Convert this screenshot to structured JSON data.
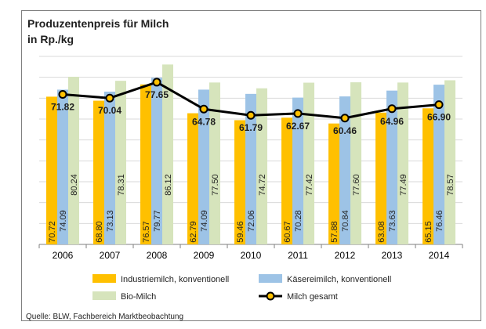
{
  "chart_data": {
    "type": "bar",
    "title": "Produzentenpreis für Milch",
    "subtitle": "in Rp./kg",
    "source": "Quelle: BLW, Fachbereich Marktbeobachtung",
    "categories": [
      "2006",
      "2007",
      "2008",
      "2009",
      "2010",
      "2011",
      "2012",
      "2013",
      "2014"
    ],
    "series": [
      {
        "name": "Industriemilch, konventionell",
        "type": "bar",
        "color": "#FFC000",
        "values": [
          70.72,
          68.8,
          76.57,
          62.79,
          59.46,
          60.67,
          57.88,
          63.08,
          65.15
        ],
        "labels": [
          "70.72",
          "68.80",
          "76.57",
          "62.79",
          "59.46",
          "60.67",
          "57.88",
          "63.08",
          "65.15"
        ]
      },
      {
        "name": "Käsereimilch, konventionell",
        "type": "bar",
        "color": "#9DC3E6",
        "values": [
          74.09,
          73.13,
          79.77,
          74.09,
          72.06,
          70.28,
          70.84,
          73.63,
          76.46
        ],
        "labels": [
          "74.09",
          "73.13",
          "79.77",
          "74.09",
          "72.06",
          "70.28",
          "70.84",
          "73.63",
          "76.46"
        ]
      },
      {
        "name": "Bio-Milch",
        "type": "bar",
        "color": "#D6E4BC",
        "values": [
          80.24,
          78.31,
          86.12,
          77.5,
          74.72,
          77.42,
          77.6,
          77.49,
          78.57
        ],
        "labels": [
          "80.24",
          "78.31",
          "86.12",
          "77.50",
          "74.72",
          "77.42",
          "77.60",
          "77.49",
          "78.57"
        ]
      },
      {
        "name": "Milch gesamt",
        "type": "line",
        "color": "#000000",
        "marker_color": "#FFC000",
        "values": [
          71.82,
          70.04,
          77.65,
          64.78,
          61.79,
          62.67,
          60.46,
          64.96,
          66.9
        ],
        "labels": [
          "71.82",
          "70.04",
          "77.65",
          "64.78",
          "61.79",
          "62.67",
          "60.46",
          "64.96",
          "66.90"
        ]
      }
    ],
    "ylim": [
      0,
      90
    ],
    "grid": true,
    "legend_position": "bottom"
  }
}
